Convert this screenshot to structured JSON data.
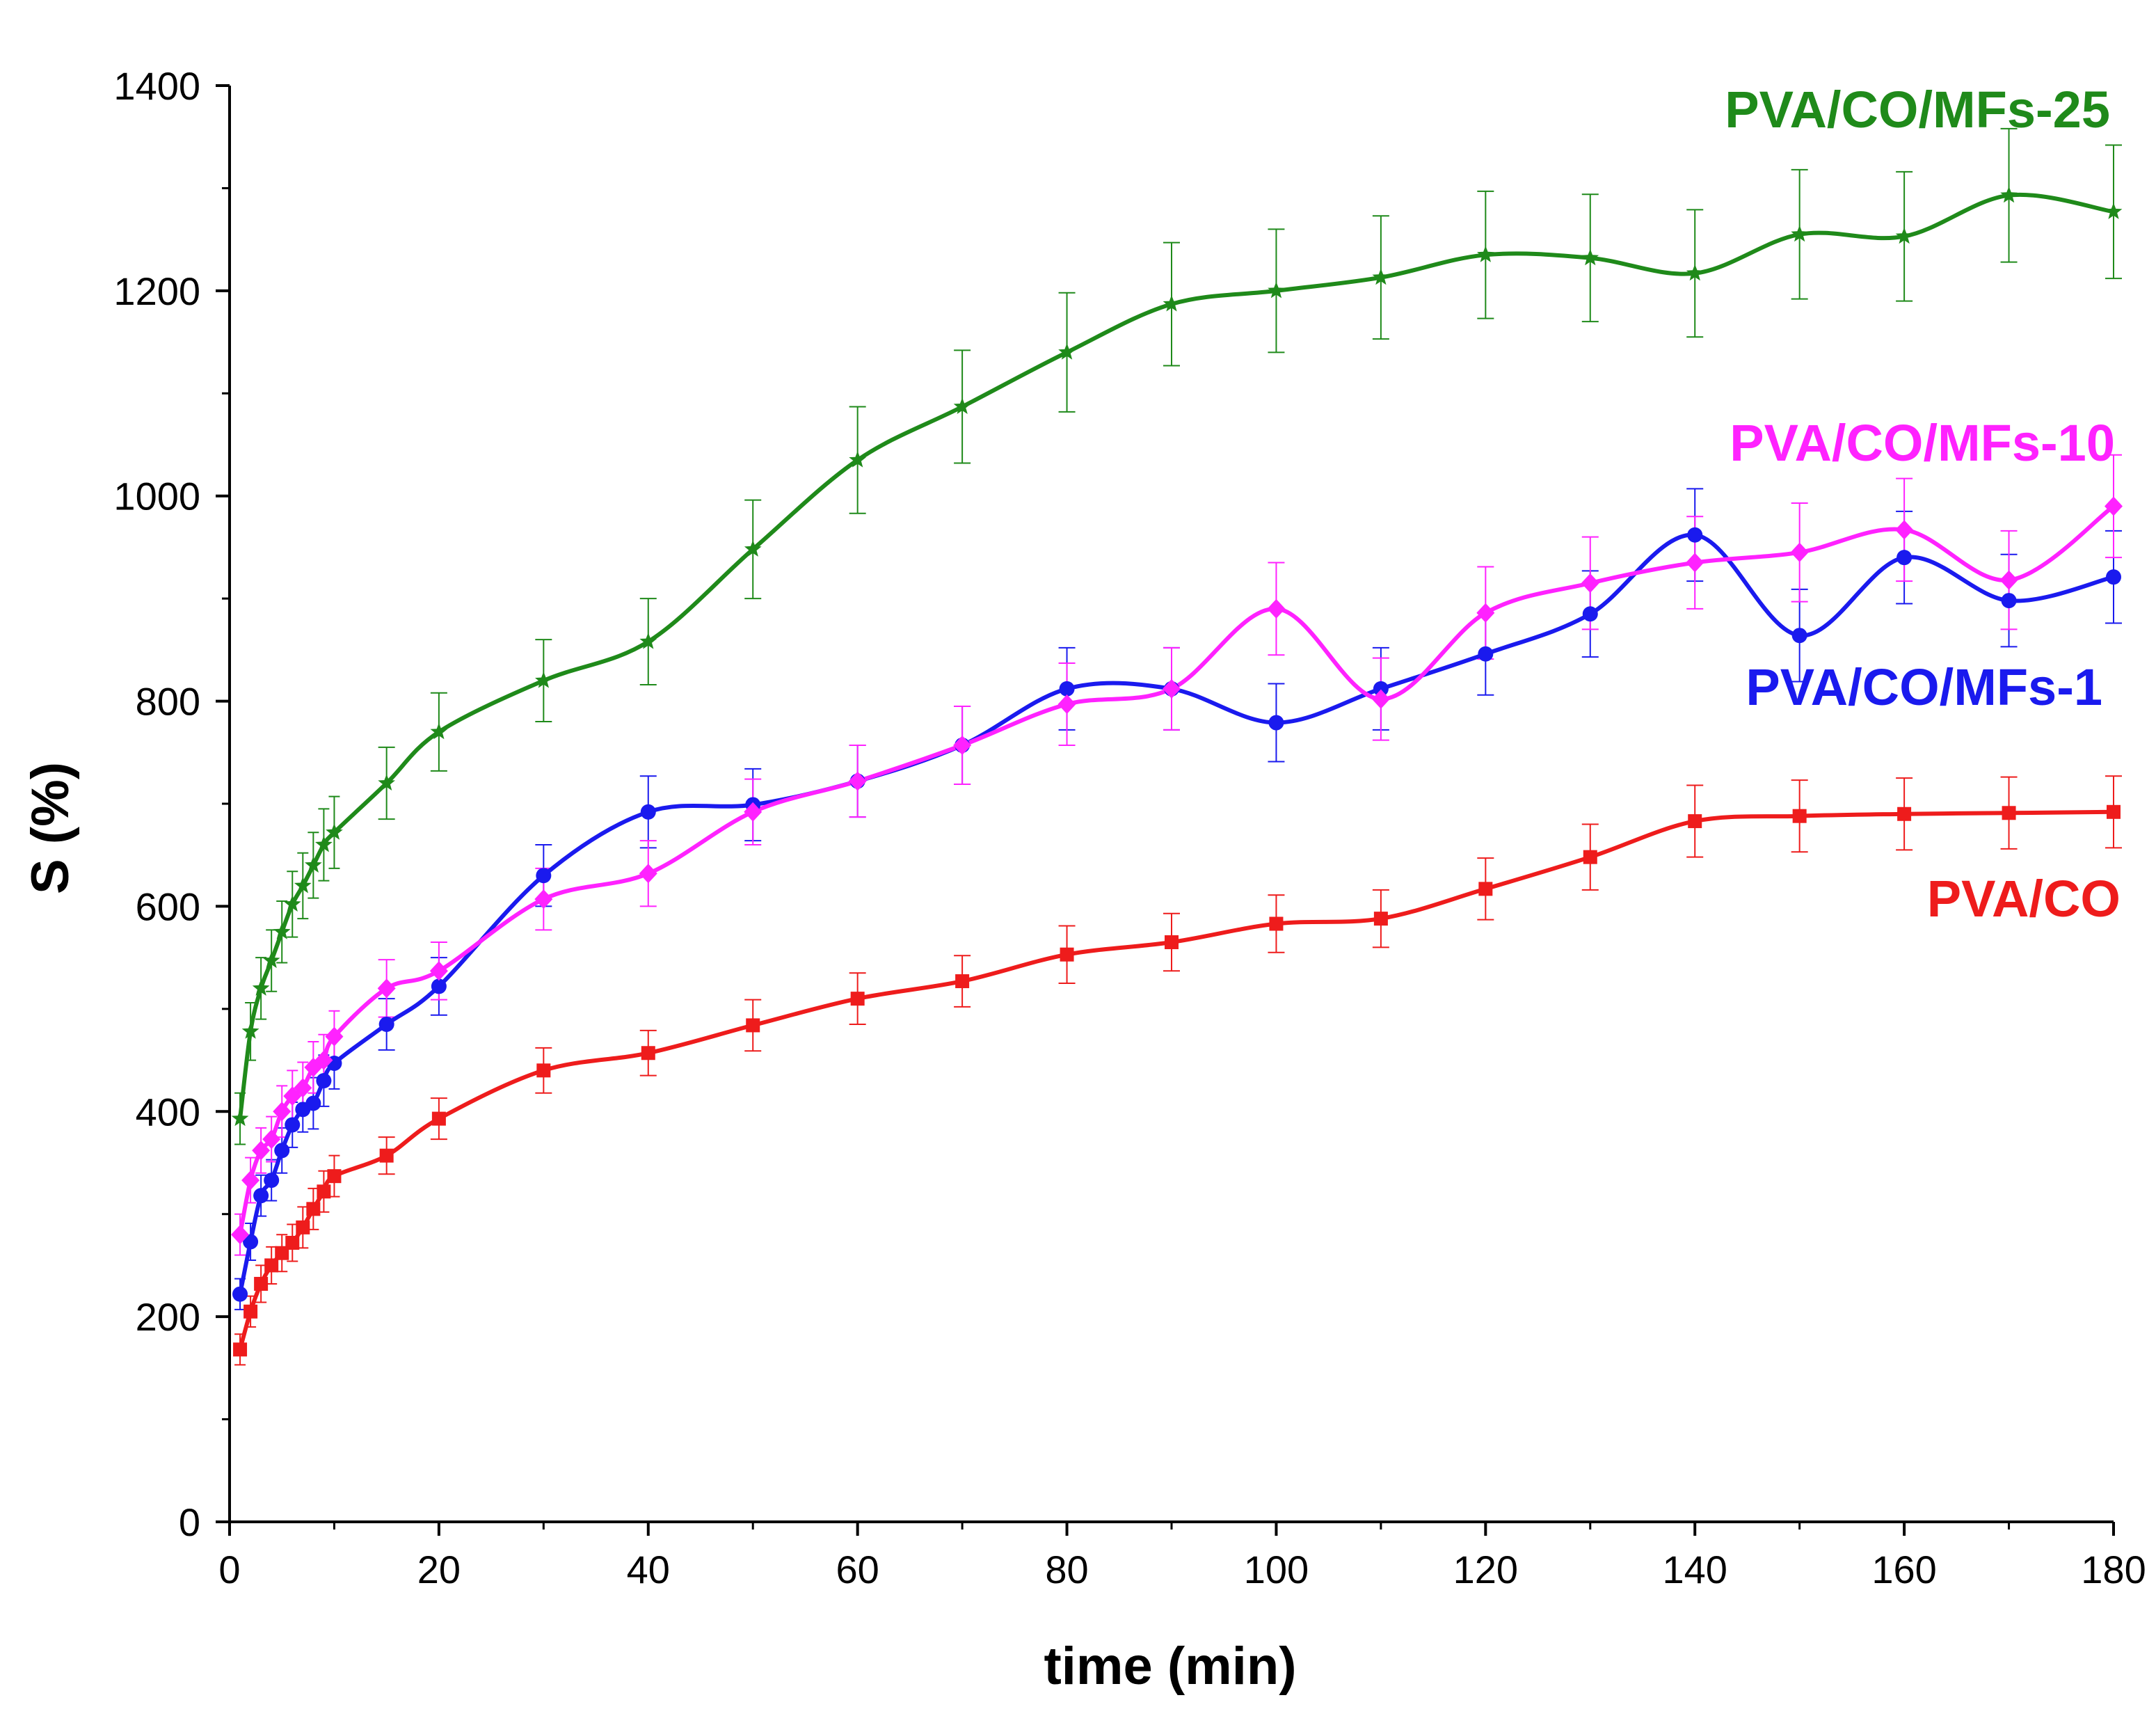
{
  "chart_data": {
    "type": "line",
    "title": "",
    "xlabel": "time (min)",
    "ylabel": "S (%)",
    "xlim": [
      0,
      180
    ],
    "ylim": [
      0,
      1400
    ],
    "x_ticks": [
      0,
      20,
      40,
      60,
      80,
      100,
      120,
      140,
      160,
      180
    ],
    "y_ticks": [
      0,
      200,
      400,
      600,
      800,
      1000,
      1200,
      1400
    ],
    "grid": false,
    "legend": "inline labels at right",
    "series": [
      {
        "name": "PVA/CO",
        "label": "PVA/CO",
        "color": "#ee1c1c",
        "marker": "square",
        "x": [
          1,
          2,
          3,
          4,
          5,
          6,
          7,
          8,
          9,
          10,
          15,
          20,
          30,
          40,
          50,
          60,
          70,
          80,
          90,
          100,
          110,
          120,
          130,
          140,
          150,
          160,
          170,
          180
        ],
        "y": [
          168,
          205,
          232,
          250,
          262,
          272,
          287,
          305,
          322,
          337,
          357,
          393,
          440,
          457,
          484,
          510,
          527,
          553,
          565,
          583,
          588,
          617,
          648,
          683,
          688,
          690,
          691,
          692
        ],
        "err": [
          15,
          15,
          18,
          18,
          18,
          18,
          20,
          20,
          20,
          20,
          18,
          20,
          22,
          22,
          25,
          25,
          25,
          28,
          28,
          28,
          28,
          30,
          32,
          35,
          35,
          35,
          35,
          35
        ]
      },
      {
        "name": "PVA/CO/MFs-1",
        "label": "PVA/CO/MFs-1",
        "color": "#1a1aee",
        "marker": "circle",
        "x": [
          1,
          2,
          3,
          4,
          5,
          6,
          7,
          8,
          9,
          10,
          15,
          20,
          30,
          40,
          50,
          60,
          70,
          80,
          90,
          100,
          110,
          120,
          130,
          140,
          150,
          160,
          170,
          180
        ],
        "y": [
          222,
          273,
          318,
          333,
          362,
          387,
          402,
          408,
          430,
          447,
          485,
          522,
          630,
          692,
          699,
          722,
          757,
          812,
          812,
          779,
          812,
          846,
          885,
          962,
          864,
          940,
          898,
          921
        ],
        "err": [
          15,
          18,
          20,
          20,
          22,
          22,
          22,
          25,
          25,
          25,
          25,
          28,
          30,
          35,
          35,
          35,
          38,
          40,
          40,
          38,
          40,
          40,
          42,
          45,
          45,
          45,
          45,
          45
        ]
      },
      {
        "name": "PVA/CO/MFs-10",
        "label": "PVA/CO/MFs-10",
        "color": "#ff22ff",
        "marker": "diamond",
        "x": [
          1,
          2,
          3,
          4,
          5,
          6,
          7,
          8,
          9,
          10,
          15,
          20,
          30,
          40,
          50,
          60,
          70,
          80,
          90,
          100,
          110,
          120,
          130,
          140,
          150,
          160,
          170,
          180
        ],
        "y": [
          280,
          333,
          362,
          373,
          400,
          415,
          423,
          443,
          450,
          473,
          520,
          537,
          607,
          632,
          692,
          722,
          757,
          797,
          812,
          890,
          802,
          886,
          915,
          935,
          945,
          967,
          918,
          990
        ],
        "err": [
          20,
          22,
          22,
          22,
          25,
          25,
          25,
          25,
          25,
          25,
          28,
          28,
          30,
          32,
          32,
          35,
          38,
          40,
          40,
          45,
          40,
          45,
          45,
          45,
          48,
          50,
          48,
          50
        ]
      },
      {
        "name": "PVA/CO/MFs-25",
        "label": "PVA/CO/MFs-25",
        "color": "#1f8a1a",
        "marker": "star",
        "x": [
          1,
          2,
          3,
          4,
          5,
          6,
          7,
          8,
          9,
          10,
          15,
          20,
          30,
          40,
          50,
          60,
          70,
          80,
          90,
          100,
          110,
          120,
          130,
          140,
          150,
          160,
          170,
          180
        ],
        "y": [
          393,
          478,
          520,
          547,
          575,
          602,
          620,
          640,
          660,
          672,
          720,
          770,
          820,
          858,
          948,
          1035,
          1087,
          1140,
          1187,
          1200,
          1213,
          1235,
          1232,
          1217,
          1255,
          1253,
          1293,
          1277
        ],
        "err": [
          25,
          28,
          30,
          30,
          30,
          32,
          32,
          32,
          35,
          35,
          35,
          38,
          40,
          42,
          48,
          52,
          55,
          58,
          60,
          60,
          60,
          62,
          62,
          62,
          63,
          63,
          65,
          65
        ]
      }
    ]
  }
}
